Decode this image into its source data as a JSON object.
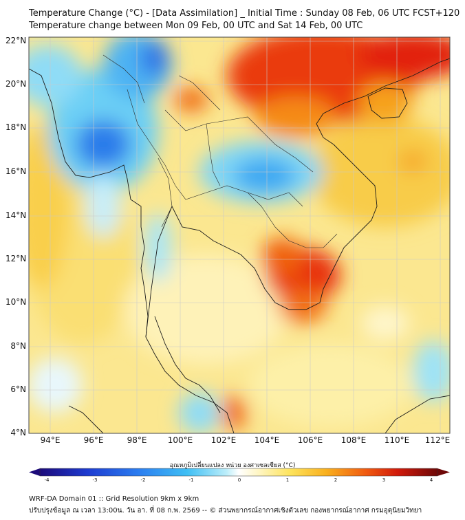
{
  "header": {
    "title_line1": "Temperature Change (°C) - [Data Assimilation] _ Initial Time : Sunday 08 Feb, 06 UTC FCST+120",
    "title_line2": "Temperature change between Mon 09 Feb, 00 UTC and Sat 14 Feb, 00 UTC"
  },
  "map": {
    "lat_labels": [
      "22°N",
      "20°N",
      "18°N",
      "16°N",
      "14°N",
      "12°N",
      "10°N",
      "8°N",
      "6°N",
      "4°N"
    ],
    "lon_labels": [
      "94°E",
      "96°E",
      "98°E",
      "100°E",
      "102°E",
      "104°E",
      "106°E",
      "108°E",
      "110°E",
      "112°E"
    ],
    "lat_range": [
      4,
      22.2
    ],
    "lon_range": [
      93,
      112.5
    ]
  },
  "colorbar": {
    "title": "อุณหภูมิเปลี่ยนแปลง หน่วย องศาเซลเซียส (°C)",
    "ticks": [
      "-4",
      "-3",
      "-2",
      "-1",
      "0",
      "1",
      "2",
      "3",
      "4"
    ],
    "colors": [
      "#1c0a7a",
      "#1d2fb8",
      "#2257e0",
      "#2f86f0",
      "#3aaef2",
      "#5cd0f5",
      "#a6e8f8",
      "#e0f6fb",
      "#fffbe0",
      "#fdf0a2",
      "#fde35c",
      "#fbc92a",
      "#f9a21a",
      "#f56e12",
      "#e8300d",
      "#c00d0a",
      "#7a0a0a"
    ]
  },
  "footer": {
    "line1": "WRF-DA Domain 01 :: Grid Resolution 9km x 9km",
    "line2": "ปรับปรุงข้อมูล ณ เวลา 13:00น. วัน อา. ที่ 08 ก.พ. 2569 -- © ส่วนพยากรณ์อากาศเชิงตัวเลข กองพยากรณ์อากาศ กรมอุตุนิยมวิทยา"
  }
}
